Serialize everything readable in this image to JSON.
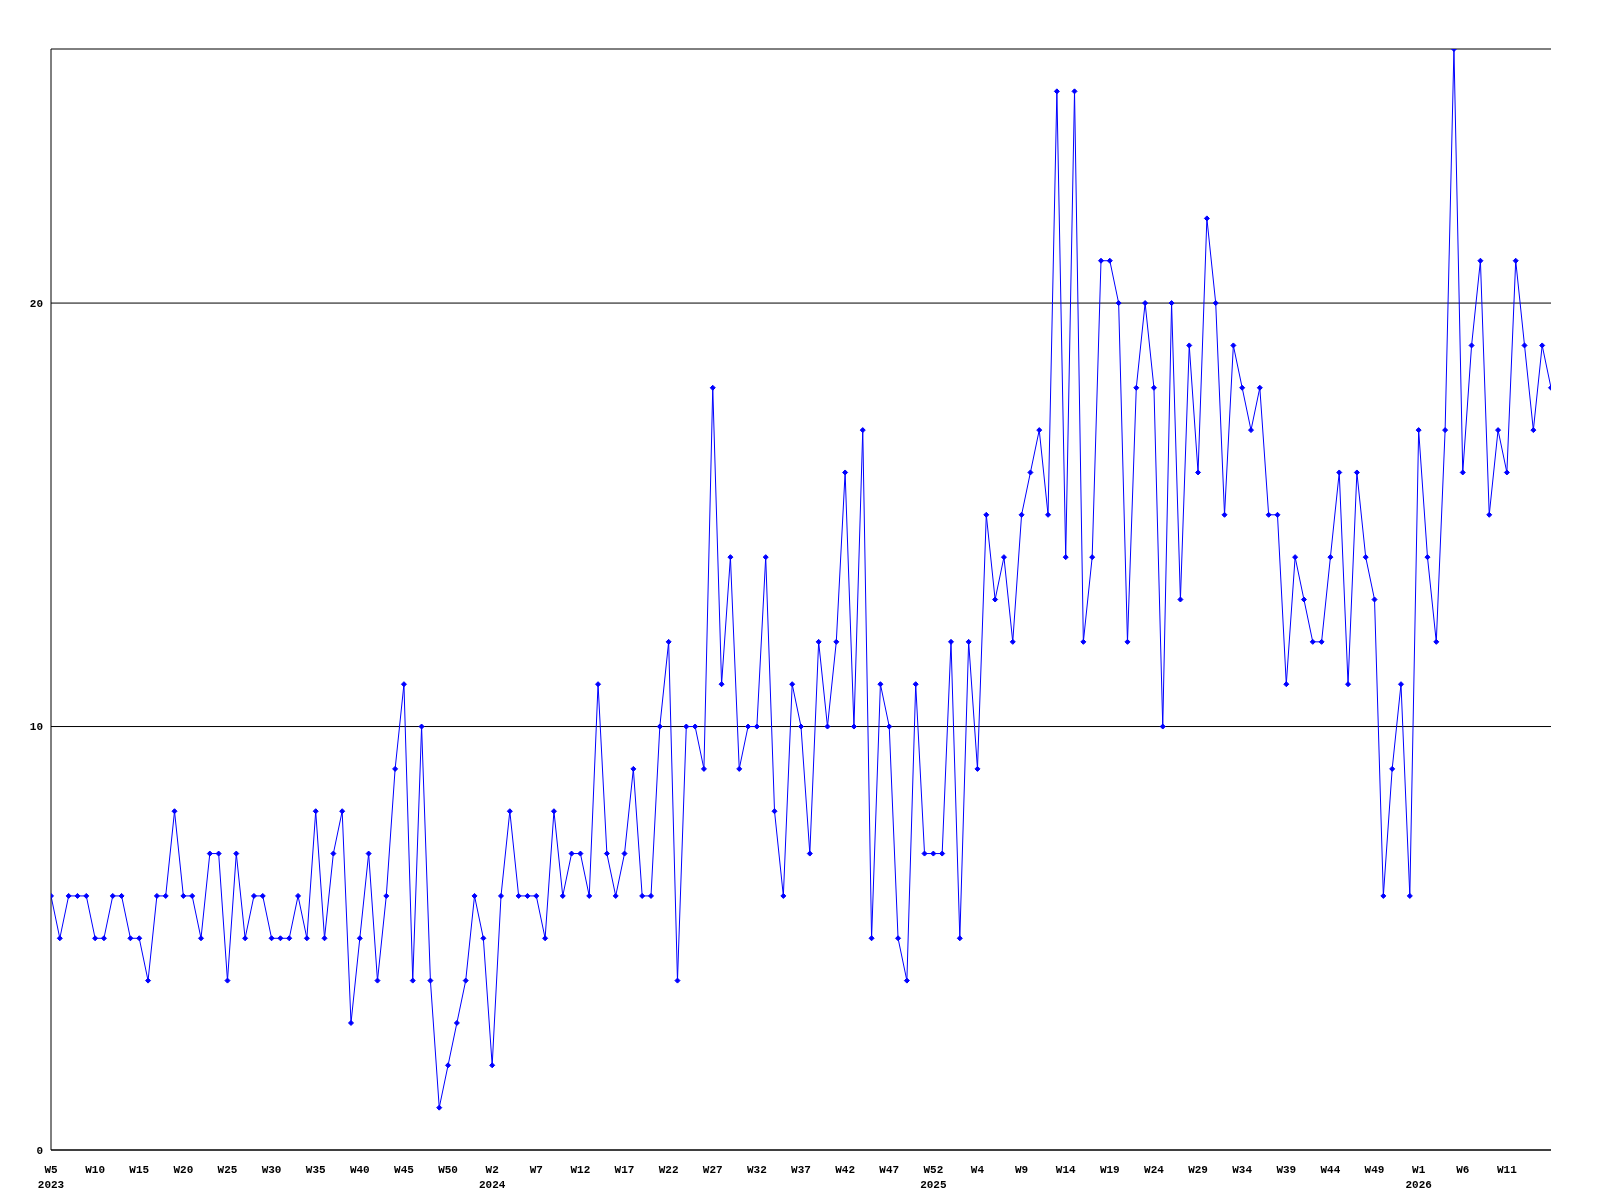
{
  "chart_data": {
    "type": "line",
    "categories": [
      "W5\n2023",
      null,
      null,
      null,
      null,
      "W10",
      null,
      null,
      null,
      null,
      "W15",
      null,
      null,
      null,
      null,
      "W20",
      null,
      null,
      null,
      null,
      "W25",
      null,
      null,
      null,
      null,
      "W30",
      null,
      null,
      null,
      null,
      "W35",
      null,
      null,
      null,
      null,
      "W40",
      null,
      null,
      null,
      null,
      "W45",
      null,
      null,
      null,
      null,
      "W50",
      null,
      null,
      null,
      null,
      "W2\n2024",
      null,
      null,
      null,
      null,
      "W7",
      null,
      null,
      null,
      null,
      "W12",
      null,
      null,
      null,
      null,
      "W17",
      null,
      null,
      null,
      null,
      "W22",
      null,
      null,
      null,
      null,
      "W27",
      null,
      null,
      null,
      null,
      "W32",
      null,
      null,
      null,
      null,
      "W37",
      null,
      null,
      null,
      null,
      "W42",
      null,
      null,
      null,
      null,
      "W47",
      null,
      null,
      null,
      null,
      "W52\n2025",
      null,
      null,
      null,
      null,
      "W4",
      null,
      null,
      null,
      null,
      "W9",
      null,
      null,
      null,
      null,
      "W14",
      null,
      null,
      null,
      null,
      "W19",
      null,
      null,
      null,
      null,
      "W24",
      null,
      null,
      null,
      null,
      "W29",
      null,
      null,
      null,
      null,
      "W34",
      null,
      null,
      null,
      null,
      "W39",
      null,
      null,
      null,
      null,
      "W44",
      null,
      null,
      null,
      null,
      "W49",
      null,
      null,
      null,
      null,
      "W1\n2026",
      null,
      null,
      null,
      null,
      "W6",
      null,
      null,
      null,
      null,
      "W11",
      null,
      null,
      null,
      null,
      null
    ],
    "series": [
      {
        "color": "#0000ff",
        "values": [
          6,
          5,
          6,
          6,
          6,
          5,
          5,
          6,
          6,
          5,
          5,
          4,
          6,
          6,
          8,
          6,
          6,
          5,
          7,
          7,
          4,
          7,
          5,
          6,
          6,
          5,
          5,
          5,
          6,
          5,
          8,
          5,
          7,
          8,
          3,
          5,
          7,
          4,
          6,
          9,
          11,
          4,
          10,
          4,
          1,
          2,
          3,
          4,
          6,
          5,
          2,
          6,
          8,
          6,
          6,
          6,
          5,
          8,
          6,
          7,
          7,
          6,
          11,
          7,
          6,
          7,
          9,
          6,
          6,
          10,
          12,
          4,
          10,
          10,
          9,
          18,
          11,
          14,
          9,
          10,
          10,
          14,
          8,
          6,
          11,
          10,
          7,
          12,
          10,
          12,
          16,
          10,
          17,
          5,
          11,
          10,
          5,
          4,
          11,
          7,
          7,
          7,
          12,
          5,
          12,
          9,
          15,
          13,
          14,
          12,
          15,
          16,
          17,
          15,
          25,
          14,
          25,
          12,
          14,
          21,
          21,
          20,
          12,
          18,
          20,
          18,
          10,
          20,
          13,
          19,
          16,
          22,
          20,
          15,
          19,
          18,
          17,
          18,
          15,
          15,
          11,
          14,
          13,
          12,
          12,
          14,
          16,
          11,
          16,
          14,
          13,
          6,
          9,
          11,
          6,
          17,
          14,
          12,
          17,
          26,
          16,
          19,
          21,
          15,
          17,
          16,
          21,
          19,
          17,
          19,
          18
        ]
      }
    ],
    "ylim": [
      0,
      26
    ],
    "yticks": [
      0,
      10,
      20
    ],
    "grid": "y",
    "legend": false,
    "marker": "diamond",
    "line_style": "solid"
  }
}
